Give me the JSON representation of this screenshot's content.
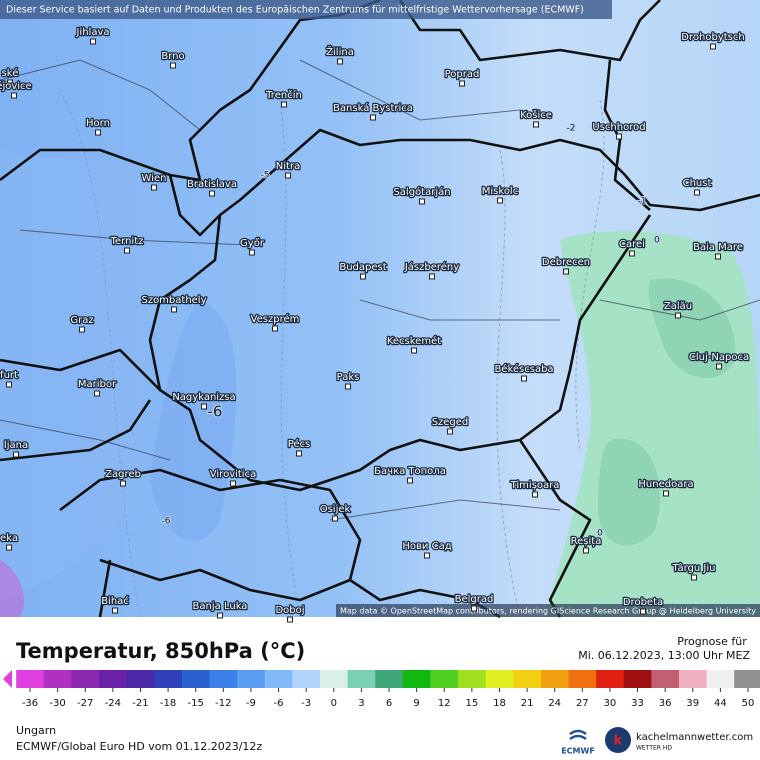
{
  "map": {
    "header": "Dieser Service basiert auf Daten und Produkten des Europäischen Zentrums für mittelfristige Wettervorhersage (ECMWF)",
    "attribution": "Map data © OpenStreetMap contributors, rendering GIScience Research Group @ Heidelberg University",
    "cities": [
      "Jihlava",
      "Brno",
      "Žilina",
      "Poprad",
      "Drohobytsch",
      "ské",
      "ějovice",
      "Trenčín",
      "Banská Bystrica",
      "Košice",
      "Horn",
      "Uschhorod",
      "Nitra",
      "Wien",
      "Bratislava",
      "Chust",
      "Salgótarján",
      "Miskolc",
      "Ternitz",
      "Győr",
      "Carei",
      "Baia Mare",
      "Budapest",
      "Jászberény",
      "Debrecen",
      "Szombathely",
      "Zalău",
      "Graz",
      "Veszprém",
      "Kecskemét",
      "Cluj-Napoca",
      "furt",
      "Maribor",
      "Paks",
      "Békéscsaba",
      "Nagykanizsa",
      "Szeged",
      "ljana",
      "Pécs",
      "Zagreb",
      "Virovitica",
      "Бачка Топола",
      "Timișoara",
      "Hunedoara",
      "eka",
      "Osijek",
      "Нови Сад",
      "Reșița",
      "Târgu Jiu",
      "Bihać",
      "Banja Luka",
      "Doboj",
      "Belgrad",
      "Drobeta"
    ],
    "contour_labels": [
      "-2",
      "-1",
      "0",
      "-5",
      "-6",
      "-6",
      "0"
    ]
  },
  "legend": {
    "title": "Temperatur, 850hPa (°C)",
    "forecast_label": "Prognose für",
    "forecast_time": "Mi. 06.12.2023, 13:00 Uhr MEZ",
    "ticks": [
      -36,
      -30,
      -27,
      -24,
      -21,
      -18,
      -15,
      -12,
      -9,
      -6,
      -3,
      0,
      3,
      6,
      9,
      12,
      15,
      18,
      21,
      24,
      27,
      30,
      33,
      36,
      39,
      44,
      50
    ],
    "colors": [
      "#e040e0",
      "#b030c0",
      "#8a28b0",
      "#6a20a8",
      "#4a2aa8",
      "#3040b8",
      "#2a60d0",
      "#3a80e8",
      "#5a9cf0",
      "#80b8f8",
      "#b0d4fb",
      "#d8f0e8",
      "#7ad0b0",
      "#40a878",
      "#10b810",
      "#50d020",
      "#a0e020",
      "#e0f020",
      "#f0d010",
      "#f0a010",
      "#f07010",
      "#e02010",
      "#a01010",
      "#c06070",
      "#f0b0c0",
      "#f0f0f0",
      "#909090"
    ],
    "region": "Ungarn",
    "model_run": "ECMWF/Global Euro HD vom  01.12.2023/12z",
    "ecmwf": "ECMWF",
    "site": "kachelmannwetter.com",
    "site_sub": "WETTER HD"
  }
}
